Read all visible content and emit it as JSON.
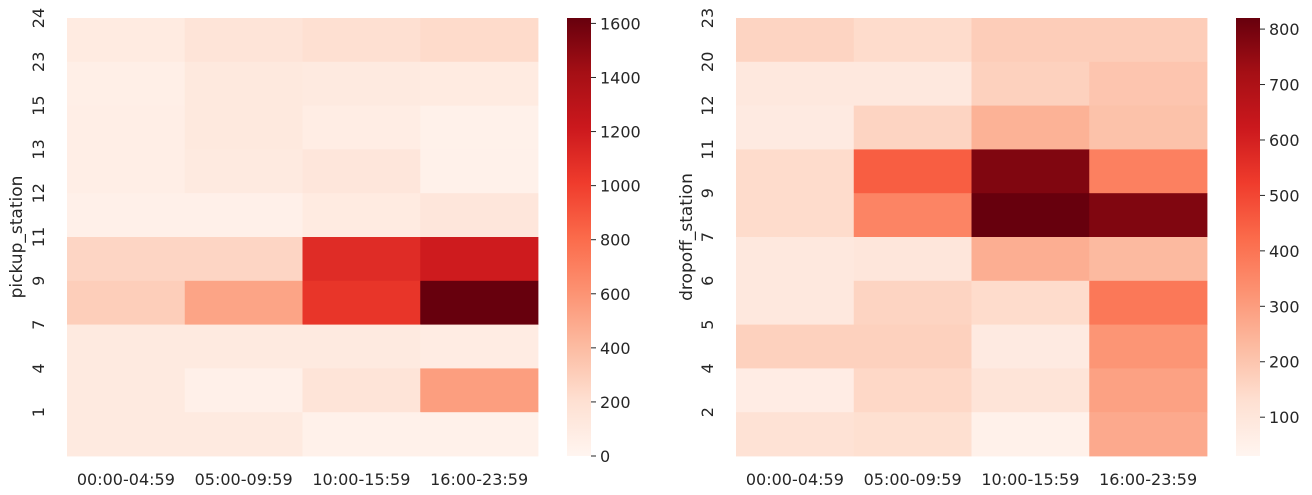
{
  "chart_data": [
    {
      "type": "heatmap",
      "title": "",
      "xlabel": "",
      "ylabel": "pickup_station",
      "x_categories": [
        "00:00-04:59",
        "05:00-09:59",
        "10:00-15:59",
        "16:00-23:59"
      ],
      "y_tick_labels": [
        "24",
        "23",
        "15",
        "13",
        "12",
        "11",
        "9",
        "7",
        "4",
        "1"
      ],
      "rows": 10,
      "values": [
        [
          100,
          160,
          200,
          230
        ],
        [
          60,
          120,
          110,
          100
        ],
        [
          70,
          120,
          80,
          40
        ],
        [
          70,
          110,
          140,
          40
        ],
        [
          50,
          50,
          100,
          140
        ],
        [
          260,
          260,
          1100,
          1200
        ],
        [
          300,
          520,
          1050,
          1620
        ],
        [
          110,
          110,
          110,
          90
        ],
        [
          110,
          50,
          160,
          550
        ],
        [
          110,
          110,
          40,
          40
        ]
      ],
      "colorbar": {
        "min": 0,
        "max": 1620,
        "ticks": [
          0,
          200,
          400,
          600,
          800,
          1000,
          1200,
          1400,
          1600
        ]
      },
      "colormap": "Reds"
    },
    {
      "type": "heatmap",
      "title": "",
      "xlabel": "",
      "ylabel": "dropoff_station",
      "x_categories": [
        "00:00-04:59",
        "05:00-09:59",
        "10:00-15:59",
        "16:00-23:59"
      ],
      "y_tick_labels": [
        "23",
        "20",
        "12",
        "11",
        "9",
        "7",
        "6",
        "5",
        "4",
        "2"
      ],
      "rows": 10,
      "values": [
        [
          160,
          140,
          180,
          180
        ],
        [
          90,
          90,
          170,
          200
        ],
        [
          80,
          160,
          250,
          210
        ],
        [
          140,
          450,
          780,
          370
        ],
        [
          140,
          360,
          820,
          780
        ],
        [
          90,
          100,
          260,
          230
        ],
        [
          90,
          160,
          140,
          390
        ],
        [
          170,
          170,
          80,
          320
        ],
        [
          70,
          150,
          110,
          290
        ],
        [
          120,
          130,
          50,
          270
        ]
      ],
      "colorbar": {
        "min": 30,
        "max": 820,
        "ticks": [
          100,
          200,
          300,
          400,
          500,
          600,
          700,
          800
        ]
      },
      "colormap": "Reds"
    }
  ]
}
